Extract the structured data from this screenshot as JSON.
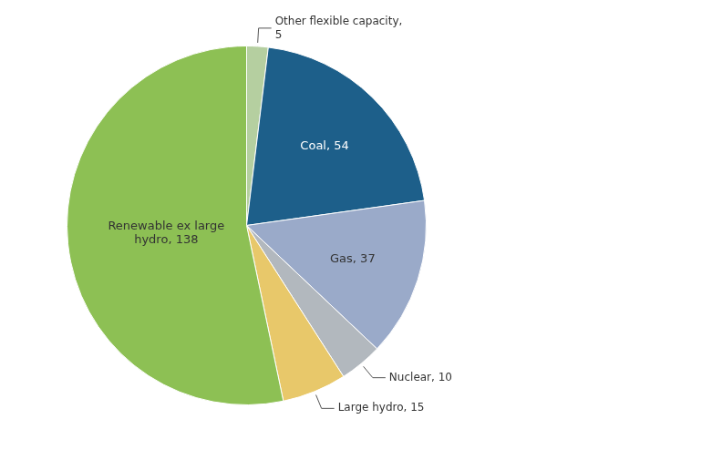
{
  "chart_data": {
    "type": "pie",
    "categories": [
      "Other flexible capacity",
      "Coal",
      "Gas",
      "Nuclear",
      "Large hydro",
      "Renewable ex large hydro"
    ],
    "values": [
      5,
      54,
      37,
      10,
      15,
      138
    ],
    "colors": [
      "#b5cfa0",
      "#1d5f8a",
      "#9aaac9",
      "#b2b8be",
      "#e8c86a",
      "#8dc054"
    ],
    "value_labels": [
      "Other flexible capacity,\n5",
      "Coal, 54",
      "Gas, 37",
      "Nuclear, 10",
      "Large hydro, 15",
      "Renewable ex large\nhydro, 138"
    ],
    "data_labels": true
  }
}
